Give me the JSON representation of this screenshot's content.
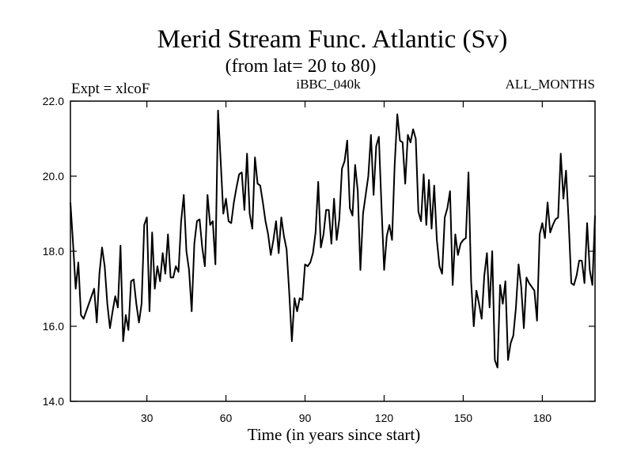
{
  "chart_data": {
    "type": "line",
    "title": "Merid Stream Func. Atlantic (Sv)",
    "subtitle": "(from lat= 20 to 80)",
    "left_label": "Expt = xlcoF",
    "center_label": "iBBC_040k",
    "right_label": "ALL_MONTHS",
    "xlabel": "Time (in years since start)",
    "ylabel": "",
    "xlim": [
      1,
      200
    ],
    "ylim": [
      14.0,
      22.0
    ],
    "x_ticks": [
      30,
      60,
      90,
      120,
      150,
      180
    ],
    "x_tick_labels": [
      "30",
      "60",
      "90",
      "120",
      "150",
      "180"
    ],
    "y_ticks": [
      14,
      16,
      18,
      20,
      22
    ],
    "y_tick_labels": [
      "14.0",
      "16.0",
      "18.0",
      "20.0",
      "22.0"
    ],
    "grid": false,
    "series": [
      {
        "name": "Merid Stream Func. Atlantic",
        "x_start": 1,
        "x_step": 1,
        "values": [
          19.3,
          18.2,
          17.0,
          17.7,
          16.3,
          16.2,
          16.4,
          16.6,
          16.8,
          17.0,
          16.1,
          17.4,
          18.1,
          17.6,
          16.6,
          15.95,
          16.4,
          16.8,
          16.5,
          18.15,
          15.6,
          16.3,
          15.9,
          17.2,
          17.25,
          16.6,
          16.1,
          16.6,
          18.7,
          18.9,
          16.4,
          18.5,
          17.0,
          17.6,
          17.2,
          17.95,
          17.4,
          18.45,
          17.3,
          17.3,
          17.6,
          17.45,
          18.8,
          19.5,
          18.0,
          17.5,
          16.4,
          18.2,
          18.8,
          18.85,
          18.1,
          17.6,
          19.5,
          18.7,
          18.8,
          17.65,
          21.75,
          20.4,
          19.0,
          19.4,
          18.8,
          18.75,
          19.3,
          19.7,
          20.05,
          20.1,
          19.1,
          20.6,
          19.0,
          18.6,
          20.5,
          19.8,
          19.75,
          19.3,
          18.8,
          18.45,
          17.9,
          18.3,
          18.8,
          17.95,
          18.9,
          18.4,
          18.05,
          16.9,
          15.6,
          16.75,
          16.4,
          16.75,
          16.7,
          17.65,
          17.6,
          17.7,
          17.95,
          18.5,
          19.85,
          18.1,
          18.45,
          19.1,
          19.1,
          18.2,
          19.4,
          18.3,
          18.85,
          20.2,
          20.4,
          20.95,
          19.15,
          18.95,
          20.3,
          19.6,
          17.5,
          19.0,
          19.5,
          20.0,
          21.1,
          19.5,
          20.8,
          21.05,
          19.2,
          17.5,
          18.4,
          18.7,
          18.3,
          20.3,
          21.65,
          20.95,
          20.9,
          19.8,
          21.1,
          20.9,
          21.25,
          21.0,
          19.05,
          18.8,
          20.05,
          18.7,
          19.9,
          18.6,
          19.75,
          18.3,
          17.6,
          17.4,
          18.9,
          19.15,
          19.6,
          17.1,
          18.45,
          17.9,
          18.2,
          18.3,
          18.35,
          20.1,
          17.2,
          16.0,
          16.95,
          16.6,
          16.2,
          17.35,
          17.95,
          16.5,
          18.0,
          15.1,
          14.9,
          17.1,
          16.6,
          17.2,
          15.1,
          15.55,
          15.75,
          16.5,
          17.65,
          17.05,
          15.95,
          17.3,
          17.15,
          17.05,
          16.95,
          16.15,
          18.45,
          18.75,
          18.35,
          19.3,
          18.5,
          18.7,
          18.85,
          18.9,
          20.6,
          19.4,
          20.15,
          18.8,
          17.15,
          17.1,
          17.35,
          17.75,
          17.75,
          17.15,
          18.75,
          17.5,
          17.1,
          18.95
        ]
      }
    ]
  }
}
